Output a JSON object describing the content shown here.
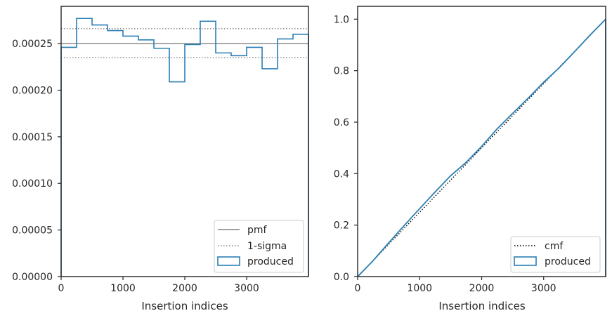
{
  "colors": {
    "produced": "#2a7fb5",
    "pmf": "#808080",
    "sigma": "#808080",
    "cmf": "#000000",
    "axes": "#262626"
  },
  "chart_data": [
    {
      "type": "histogram-step",
      "xlabel": "Insertion indices",
      "ylabel": "",
      "xlim": [
        0,
        4000
      ],
      "ylim": [
        0,
        0.00029
      ],
      "xticks": [
        0,
        1000,
        2000,
        3000
      ],
      "xtick_labels": [
        "0",
        "1000",
        "2000",
        "3000"
      ],
      "yticks": [
        0,
        5e-05,
        0.0001,
        0.00015,
        0.0002,
        0.00025
      ],
      "ytick_labels": [
        "0.00000",
        "0.00005",
        "0.00010",
        "0.00015",
        "0.00020",
        "0.00025"
      ],
      "bin_edges": [
        0,
        250,
        500,
        750,
        1000,
        1250,
        1500,
        1750,
        2000,
        2250,
        2500,
        2750,
        3000,
        3250,
        3500,
        3750,
        4000
      ],
      "series": [
        {
          "name": "produced",
          "values": [
            0.000246,
            0.000277,
            0.00027,
            0.000264,
            0.000258,
            0.000254,
            0.000245,
            0.000209,
            0.000249,
            0.000274,
            0.00024,
            0.000237,
            0.000246,
            0.000223,
            0.000255,
            0.00026
          ]
        }
      ],
      "hlines": [
        {
          "name": "pmf",
          "y": 0.00025,
          "style": "solid"
        },
        {
          "name": "1-sigma",
          "y": 0.000266,
          "style": "dotted"
        },
        {
          "name": "1-sigma",
          "y": 0.000235,
          "style": "dotted"
        }
      ],
      "legend": {
        "placement": "lower-right",
        "entries": [
          "pmf",
          "1-sigma",
          "produced"
        ]
      }
    },
    {
      "type": "line",
      "xlabel": "Insertion indices",
      "ylabel": "",
      "xlim": [
        0,
        4000
      ],
      "ylim": [
        0,
        1.05
      ],
      "xticks": [
        0,
        1000,
        2000,
        3000
      ],
      "xtick_labels": [
        "0",
        "1000",
        "2000",
        "3000"
      ],
      "yticks": [
        0,
        0.2,
        0.4,
        0.6,
        0.8,
        1.0
      ],
      "ytick_labels": [
        "0.0",
        "0.2",
        "0.4",
        "0.6",
        "0.8",
        "1.0"
      ],
      "series": [
        {
          "name": "cmf",
          "x": [
            0,
            4000
          ],
          "y": [
            0,
            1.0
          ]
        },
        {
          "name": "produced",
          "x": [
            0,
            250,
            500,
            750,
            1000,
            1250,
            1500,
            1750,
            2000,
            2250,
            2500,
            2750,
            3000,
            3250,
            3500,
            3750,
            4000
          ],
          "y": [
            0,
            0.062,
            0.131,
            0.198,
            0.264,
            0.329,
            0.392,
            0.444,
            0.506,
            0.574,
            0.634,
            0.693,
            0.755,
            0.811,
            0.874,
            0.939,
            1.0
          ]
        }
      ],
      "legend": {
        "placement": "lower-right",
        "entries": [
          "cmf",
          "produced"
        ]
      }
    }
  ]
}
